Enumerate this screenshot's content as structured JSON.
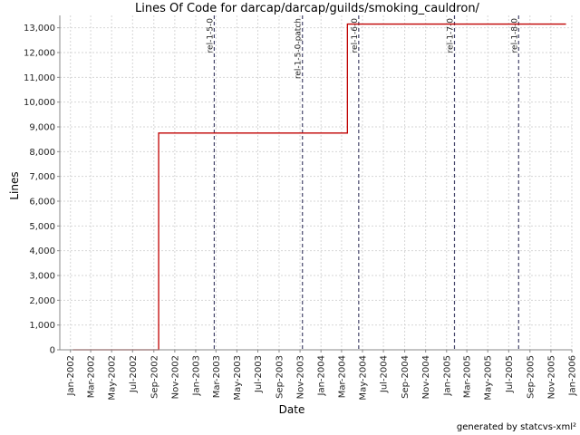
{
  "chart_data": {
    "type": "line",
    "title": "Lines Of Code for darcap/darcap/guilds/smoking_cauldron/",
    "xlabel": "Date",
    "ylabel": "Lines",
    "x_range": [
      "2001-12-01",
      "2006-01-01"
    ],
    "ylim": [
      0,
      13500
    ],
    "y_ticks": [
      0,
      1000,
      2000,
      3000,
      4000,
      5000,
      6000,
      7000,
      8000,
      9000,
      10000,
      11000,
      12000,
      13000
    ],
    "y_tick_labels": [
      "0",
      "1,000",
      "2,000",
      "3,000",
      "4,000",
      "5,000",
      "6,000",
      "7,000",
      "8,000",
      "9,000",
      "10,000",
      "11,000",
      "12,000",
      "13,000"
    ],
    "x_ticks": [
      {
        "date": "2002-01-01",
        "label": "Jan-2002"
      },
      {
        "date": "2002-03-01",
        "label": "Mar-2002"
      },
      {
        "date": "2002-05-01",
        "label": "May-2002"
      },
      {
        "date": "2002-07-01",
        "label": "Jul-2002"
      },
      {
        "date": "2002-09-01",
        "label": "Sep-2002"
      },
      {
        "date": "2002-11-01",
        "label": "Nov-2002"
      },
      {
        "date": "2003-01-01",
        "label": "Jan-2003"
      },
      {
        "date": "2003-03-01",
        "label": "Mar-2003"
      },
      {
        "date": "2003-05-01",
        "label": "May-2003"
      },
      {
        "date": "2003-07-01",
        "label": "Jul-2003"
      },
      {
        "date": "2003-09-01",
        "label": "Sep-2003"
      },
      {
        "date": "2003-11-01",
        "label": "Nov-2003"
      },
      {
        "date": "2004-01-01",
        "label": "Jan-2004"
      },
      {
        "date": "2004-03-01",
        "label": "Mar-2004"
      },
      {
        "date": "2004-05-01",
        "label": "May-2004"
      },
      {
        "date": "2004-07-01",
        "label": "Jul-2004"
      },
      {
        "date": "2004-09-01",
        "label": "Sep-2004"
      },
      {
        "date": "2004-11-01",
        "label": "Nov-2004"
      },
      {
        "date": "2005-01-01",
        "label": "Jan-2005"
      },
      {
        "date": "2005-03-01",
        "label": "Mar-2005"
      },
      {
        "date": "2005-05-01",
        "label": "May-2005"
      },
      {
        "date": "2005-07-01",
        "label": "Jul-2005"
      },
      {
        "date": "2005-09-01",
        "label": "Sep-2005"
      },
      {
        "date": "2005-11-01",
        "label": "Nov-2005"
      },
      {
        "date": "2006-01-01",
        "label": "Jan-2006"
      }
    ],
    "series": [
      {
        "color": "#c00000",
        "step": true,
        "points": [
          {
            "x": "2002-01-08",
            "y": 0
          },
          {
            "x": "2002-09-15",
            "y": 8750
          },
          {
            "x": "2004-03-18",
            "y": 13150
          },
          {
            "x": "2005-12-15",
            "y": 13150
          }
        ]
      }
    ],
    "releases": [
      {
        "label": "rel-1-5-0",
        "date": "2003-02-24"
      },
      {
        "label": "rel-1-5-0-patch",
        "date": "2003-11-08"
      },
      {
        "label": "rel-1-6-0",
        "date": "2004-04-20"
      },
      {
        "label": "rel-1-7-0",
        "date": "2005-01-24"
      },
      {
        "label": "rel-1-8-0",
        "date": "2005-07-30"
      }
    ],
    "grid": true
  },
  "footer": "generated by statcvs-xml²"
}
